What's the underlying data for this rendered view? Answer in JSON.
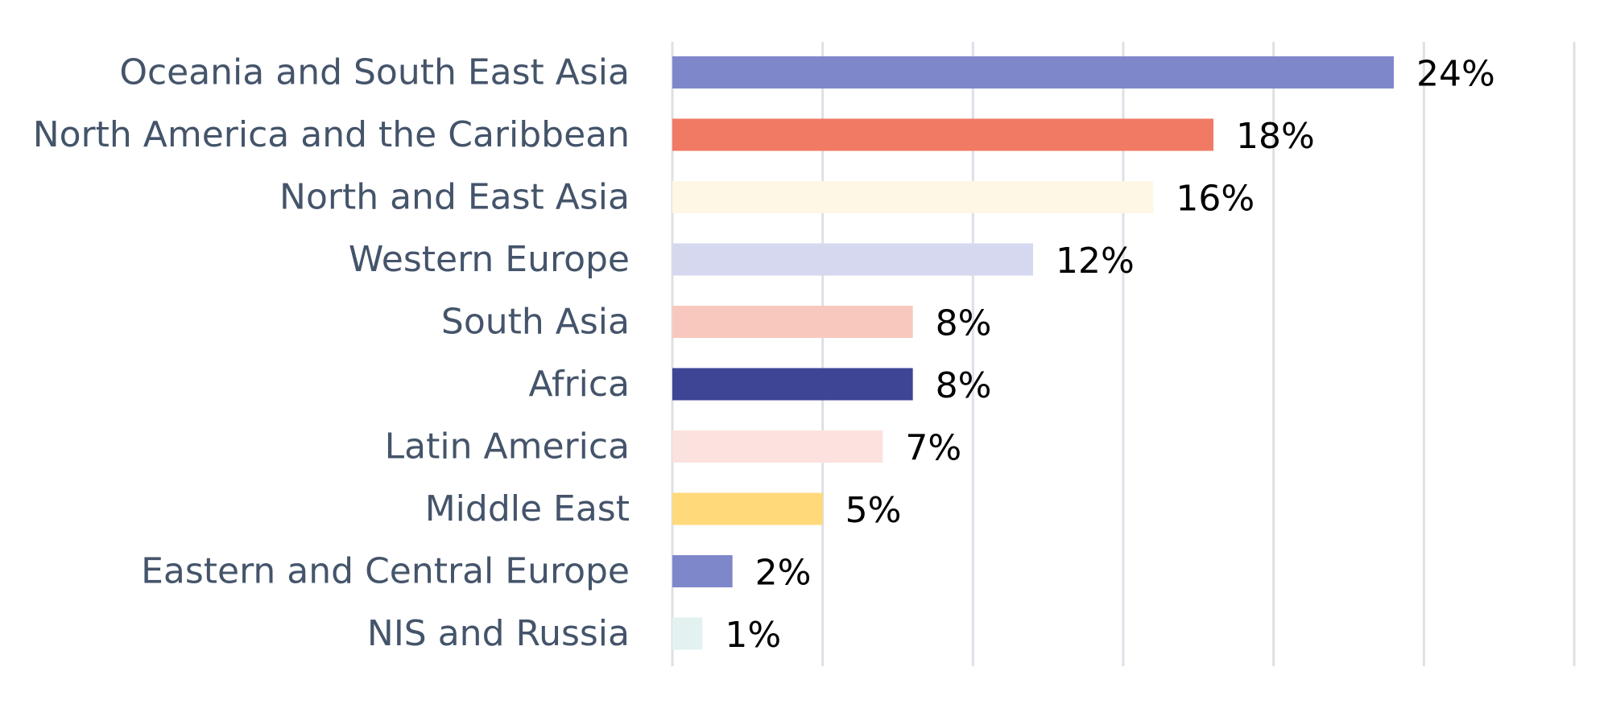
{
  "chart_data": {
    "type": "bar",
    "orientation": "horizontal",
    "categories": [
      "Oceania and South East Asia",
      "North America and the Caribbean",
      "North and East Asia",
      "Western Europe",
      "South Asia",
      "Africa",
      "Latin America",
      "Middle East",
      "Eastern and Central Europe",
      "NIS and Russia"
    ],
    "values": [
      24,
      18,
      16,
      12,
      8,
      8,
      7,
      5,
      2,
      1
    ],
    "value_labels": [
      "24%",
      "18%",
      "16%",
      "12%",
      "8%",
      "8%",
      "7%",
      "5%",
      "2%",
      "1%"
    ],
    "bar_colors": [
      "#7f87cb",
      "#f07a64",
      "#fff7e6",
      "#d5d8ef",
      "#f8c8bf",
      "#3d4594",
      "#fbe2de",
      "#ffd97a",
      "#7f87cb",
      "#e3f2f0"
    ],
    "xlim": [
      0,
      30
    ],
    "x_gridlines": [
      0,
      5,
      10,
      15,
      20,
      25,
      30
    ],
    "grid": true,
    "legend": "none",
    "title": "",
    "xlabel": "",
    "ylabel": ""
  }
}
